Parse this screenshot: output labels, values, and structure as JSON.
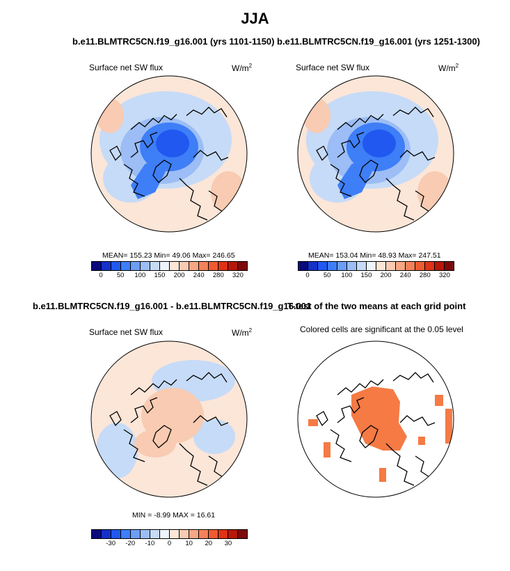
{
  "figure": {
    "title": "JJA"
  },
  "panels": {
    "p1": {
      "title": "b.e11.BLMTRC5CN.f19_g16.001 (yrs 1101-1150)",
      "variable": "Surface net SW flux",
      "units_base": "W/m",
      "units_exp": "2",
      "stats": "MEAN= 155.23  Min=  49.06  Max= 246.65"
    },
    "p2": {
      "title": "b.e11.BLMTRC5CN.f19_g16.001 (yrs 1251-1300)",
      "variable": "Surface net SW flux",
      "units_base": "W/m",
      "units_exp": "2",
      "stats": "MEAN= 153.04  Min=  48.93  Max= 247.51"
    },
    "p3": {
      "title": "b.e11.BLMTRC5CN.f19_g16.001 - b.e11.BLMTRC5CN.f19_g16.001",
      "variable": "Surface net SW flux",
      "units_base": "W/m",
      "units_exp": "2",
      "stats": "MIN =  -8.99 MAX =  16.61"
    },
    "p4": {
      "title": "T-test of the two means at each grid point",
      "variable": "Colored cells are significant at the 0.05 level"
    }
  },
  "colorbars": {
    "abs": {
      "colors": [
        "#0a0a7a",
        "#1432c8",
        "#2158f0",
        "#3e7ef7",
        "#6c9ef7",
        "#9cbdf5",
        "#c6dbf7",
        "#eef4fb",
        "#fbe6d8",
        "#f8cbb2",
        "#f6a784",
        "#f3825a",
        "#ee5b33",
        "#dd3316",
        "#b5180b",
        "#7d0a0a"
      ],
      "ticks": [
        "0",
        "50",
        "100",
        "150",
        "200",
        "240",
        "280",
        "320"
      ]
    },
    "diff": {
      "colors": [
        "#0a0a7a",
        "#1432c8",
        "#2158f0",
        "#3e7ef7",
        "#6c9ef7",
        "#9cbdf5",
        "#c6dbf7",
        "#eef4fb",
        "#fbe6d8",
        "#f8cbb2",
        "#f6a784",
        "#f3825a",
        "#ee5b33",
        "#dd3316",
        "#b5180b",
        "#7d0a0a"
      ],
      "ticks": [
        "-30",
        "-20",
        "-10",
        "0",
        "10",
        "20",
        "30"
      ]
    }
  },
  "palette": {
    "significant": "#f57a44",
    "ocean_light_blue": "#c6dbf7",
    "ocean_blue": "#9cbdf5",
    "ice_blue": "#3e7ef7",
    "ice_deep": "#2158f0",
    "land_peach": "#fbe6d8",
    "land_orange": "#f8cbb2"
  }
}
